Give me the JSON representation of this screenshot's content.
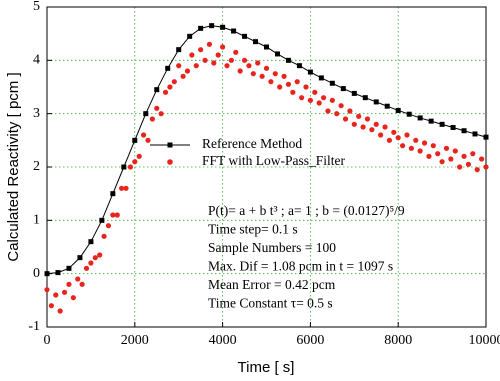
{
  "chart_data": {
    "type": "line",
    "x_label": "Time [ s]",
    "y_label": "Calculated Reactivity [ pcm ]",
    "xlim": [
      0,
      10000
    ],
    "ylim": [
      -1,
      5
    ],
    "xticks": [
      0,
      2000,
      4000,
      6000,
      8000,
      10000
    ],
    "yticks": [
      -1,
      0,
      1,
      2,
      3,
      4,
      5
    ],
    "grid": true,
    "grid_color": "#33aa33",
    "legend_position": "right",
    "series": [
      {
        "name": "Reference Method",
        "color": "#000000",
        "style": "line-markers",
        "x": [
          0,
          250,
          500,
          750,
          1000,
          1250,
          1500,
          1750,
          2000,
          2250,
          2500,
          2750,
          3000,
          3250,
          3500,
          3750,
          4000,
          4250,
          4500,
          4750,
          5000,
          5250,
          5500,
          5750,
          6000,
          6250,
          6500,
          6750,
          7000,
          7250,
          7500,
          7750,
          8000,
          8250,
          8500,
          8750,
          9000,
          9250,
          9500,
          9750,
          10000
        ],
        "values": [
          0,
          0.02,
          0.1,
          0.3,
          0.6,
          1.0,
          1.5,
          2.0,
          2.5,
          3.0,
          3.45,
          3.85,
          4.2,
          4.45,
          4.6,
          4.65,
          4.62,
          4.55,
          4.45,
          4.35,
          4.25,
          4.12,
          4.0,
          3.9,
          3.78,
          3.67,
          3.57,
          3.47,
          3.38,
          3.3,
          3.22,
          3.14,
          3.06,
          2.99,
          2.92,
          2.86,
          2.8,
          2.74,
          2.68,
          2.62,
          2.56
        ]
      },
      {
        "name": "FFT with Low-Pass_Filter",
        "color": "#e8241c",
        "style": "markers",
        "x": [
          0,
          100,
          200,
          300,
          400,
          500,
          600,
          700,
          800,
          900,
          1000,
          1100,
          1200,
          1300,
          1400,
          1500,
          1600,
          1700,
          1800,
          1900,
          2000,
          2100,
          2200,
          2300,
          2400,
          2500,
          2600,
          2700,
          2800,
          2900,
          3000,
          3100,
          3200,
          3300,
          3400,
          3500,
          3600,
          3700,
          3800,
          3900,
          4000,
          4100,
          4200,
          4300,
          4400,
          4500,
          4600,
          4700,
          4800,
          4900,
          5000,
          5100,
          5200,
          5300,
          5400,
          5500,
          5600,
          5700,
          5800,
          5900,
          6000,
          6100,
          6200,
          6300,
          6400,
          6500,
          6600,
          6700,
          6800,
          6900,
          7000,
          7100,
          7200,
          7300,
          7400,
          7500,
          7600,
          7700,
          7800,
          7900,
          8000,
          8100,
          8200,
          8300,
          8400,
          8500,
          8600,
          8700,
          8800,
          8900,
          9000,
          9100,
          9200,
          9300,
          9400,
          9500,
          9600,
          9700,
          9800,
          9900,
          10000
        ],
        "values": [
          -0.3,
          -0.6,
          -0.4,
          -0.7,
          -0.35,
          -0.2,
          -0.45,
          -0.1,
          -0.2,
          0.1,
          0.2,
          0.3,
          0.35,
          0.7,
          0.9,
          1.1,
          1.1,
          1.6,
          1.6,
          2.0,
          2.1,
          2.2,
          2.6,
          2.5,
          2.9,
          3.1,
          3.0,
          3.4,
          3.5,
          3.6,
          3.9,
          3.7,
          3.8,
          4.1,
          3.9,
          4.2,
          4.0,
          4.3,
          3.95,
          4.1,
          4.25,
          3.9,
          4.0,
          4.15,
          3.8,
          4.0,
          3.9,
          3.75,
          3.95,
          3.7,
          3.85,
          3.6,
          3.75,
          3.5,
          3.7,
          3.55,
          3.4,
          3.6,
          3.3,
          3.5,
          3.25,
          3.4,
          3.2,
          3.3,
          3.05,
          3.25,
          3.0,
          3.15,
          2.9,
          3.05,
          2.8,
          2.95,
          2.75,
          2.9,
          2.7,
          2.8,
          2.6,
          2.75,
          2.5,
          2.65,
          2.55,
          2.4,
          2.6,
          2.35,
          2.5,
          2.3,
          2.45,
          2.2,
          2.4,
          2.25,
          2.1,
          2.35,
          2.15,
          2.3,
          2.0,
          2.2,
          2.05,
          2.25,
          1.95,
          2.15,
          2.0
        ]
      }
    ],
    "annotations": [
      "P(t)= a + b t³ ; a= 1 ; b = (0.0127)⁵/9",
      "Time step= 0.1 s",
      "Sample Numbers = 100",
      "Max. Dif = 1.08 pcm  in t =  1097 s",
      "Mean Error =  0.42 pcm",
      "Time Constant τ= 0.5 s"
    ]
  }
}
